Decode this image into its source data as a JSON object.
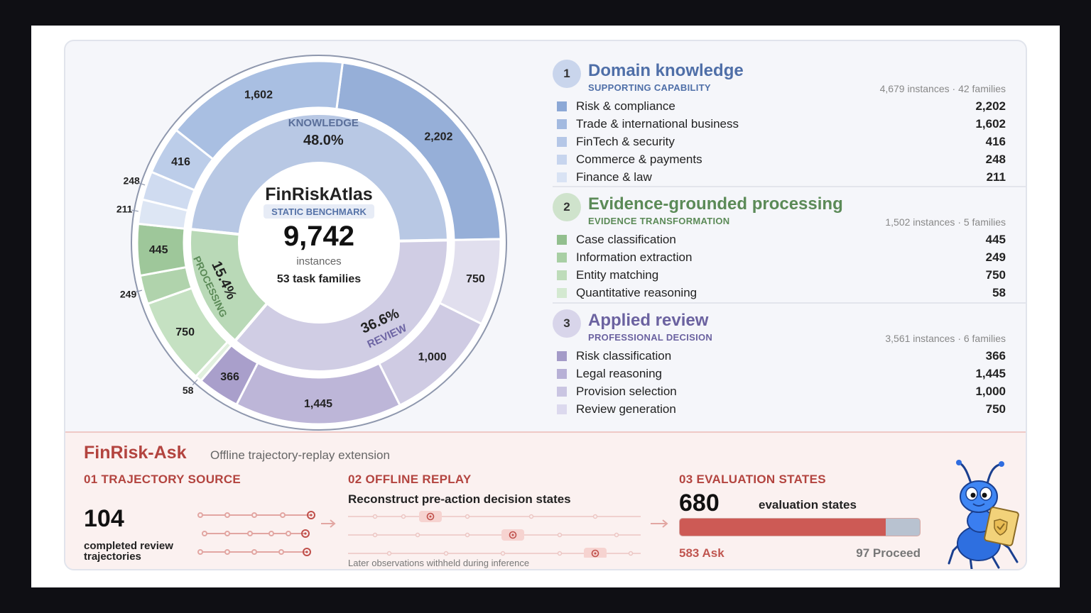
{
  "center": {
    "title": "FinRiskAtlas",
    "badge": "STATIC BENCHMARK",
    "total": "9,742",
    "unit": "instances",
    "families": "53 task families"
  },
  "chart_data": {
    "type": "pie",
    "total": 9742,
    "inner_ring": [
      {
        "name": "KNOWLEDGE",
        "percent_label": "48.0%",
        "value": 4679,
        "color": "#b8c8e4"
      },
      {
        "name": "REVIEW",
        "percent_label": "36.6%",
        "value": 3561,
        "color": "#d0cde4"
      },
      {
        "name": "PROCESSING",
        "percent_label": "15.4%",
        "value": 1502,
        "color": "#b9d9b7"
      }
    ],
    "outer_ring": [
      {
        "label": "2,202",
        "value": 2202,
        "group": "knowledge",
        "color": "#96afd8"
      },
      {
        "label": "750",
        "value": 750,
        "group": "review",
        "color": "#e1dfee"
      },
      {
        "label": "1,000",
        "value": 1000,
        "group": "review",
        "color": "#cfcbe3"
      },
      {
        "label": "1,445",
        "value": 1445,
        "group": "review",
        "color": "#bdb6d8"
      },
      {
        "label": "366",
        "value": 366,
        "group": "review",
        "color": "#a99fcb"
      },
      {
        "label": "58",
        "value": 58,
        "group": "processing",
        "color": "#e2f0df"
      },
      {
        "label": "750",
        "value": 750,
        "group": "processing",
        "color": "#c5e1c2"
      },
      {
        "label": "249",
        "value": 249,
        "group": "processing",
        "color": "#b0d3ac"
      },
      {
        "label": "445",
        "value": 445,
        "group": "processing",
        "color": "#9ec79a"
      },
      {
        "label": "211",
        "value": 211,
        "group": "knowledge",
        "color": "#dde6f4"
      },
      {
        "label": "248",
        "value": 248,
        "group": "knowledge",
        "color": "#cfdbf0"
      },
      {
        "label": "416",
        "value": 416,
        "group": "knowledge",
        "color": "#bccde9"
      },
      {
        "label": "1,602",
        "value": 1602,
        "group": "knowledge",
        "color": "#a9bfe2"
      }
    ]
  },
  "groups": [
    {
      "num": "1",
      "title": "Domain knowledge",
      "subtitle": "SUPPORTING CAPABILITY",
      "meta": "4,679 instances · 42 families",
      "title_color": "#4f6fa8",
      "sub_color": "#4f6fa8",
      "circle_color": "#c9d5ec",
      "rows": [
        {
          "label": "Risk & compliance",
          "value": "2,202",
          "color": "#8ca8d6"
        },
        {
          "label": "Trade & international business",
          "value": "1,602",
          "color": "#a3bae0"
        },
        {
          "label": "FinTech & security",
          "value": "416",
          "color": "#b5c7e7"
        },
        {
          "label": "Commerce & payments",
          "value": "248",
          "color": "#c7d5ee"
        },
        {
          "label": "Finance & law",
          "value": "211",
          "color": "#d9e3f4"
        }
      ]
    },
    {
      "num": "2",
      "title": "Evidence-grounded processing",
      "subtitle": "EVIDENCE TRANSFORMATION",
      "meta": "1,502 instances · 5 families",
      "title_color": "#5b8a57",
      "sub_color": "#5b8a57",
      "circle_color": "#cfe3cc",
      "rows": [
        {
          "label": "Case classification",
          "value": "445",
          "color": "#92bf8e"
        },
        {
          "label": "Information extraction",
          "value": "249",
          "color": "#a8cfa4"
        },
        {
          "label": "Entity matching",
          "value": "750",
          "color": "#bedcba"
        },
        {
          "label": "Quantitative reasoning",
          "value": "58",
          "color": "#d4e9d1"
        }
      ]
    },
    {
      "num": "3",
      "title": "Applied review",
      "subtitle": "PROFESSIONAL DECISION",
      "meta": "3,561 instances · 6 families",
      "title_color": "#6b62a0",
      "sub_color": "#6b62a0",
      "circle_color": "#d8d5ea",
      "rows": [
        {
          "label": "Risk classification",
          "value": "366",
          "color": "#a49bc8"
        },
        {
          "label": "Legal reasoning",
          "value": "1,445",
          "color": "#b7b0d6"
        },
        {
          "label": "Provision selection",
          "value": "1,000",
          "color": "#cac5e2"
        },
        {
          "label": "Review generation",
          "value": "750",
          "color": "#dcd9ee"
        }
      ]
    }
  ],
  "ask": {
    "title": "FinRisk-Ask",
    "subtitle": "Offline trajectory-replay extension",
    "step1": {
      "heading": "01  TRAJECTORY SOURCE",
      "number": "104",
      "caption_line1": "completed review",
      "caption_line2": "trajectories"
    },
    "step2": {
      "heading": "02  OFFLINE REPLAY",
      "text": "Reconstruct pre-action decision states",
      "note": "Later observations withheld during inference"
    },
    "step3": {
      "heading": "03  EVALUATION STATES",
      "number": "680",
      "caption": "evaluation states",
      "ask_label": "583 Ask",
      "proceed_label": "97 Proceed",
      "ask_value": 583,
      "proceed_value": 97
    }
  }
}
